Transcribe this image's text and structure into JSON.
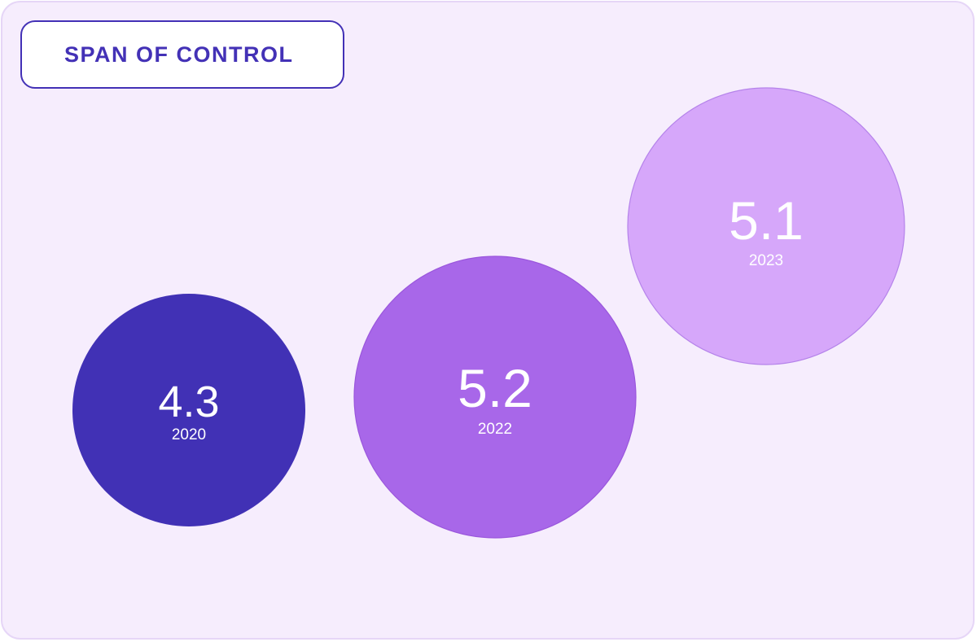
{
  "chart_data": {
    "type": "bubble",
    "title": "SPAN OF CONTROL",
    "points": [
      {
        "year": "2020",
        "value": 4.3,
        "label": "4.3",
        "color": "#4131b5"
      },
      {
        "year": "2022",
        "value": 5.2,
        "label": "5.2",
        "color": "#a867e9"
      },
      {
        "year": "2023",
        "value": 5.1,
        "label": "5.1",
        "color": "#d6a7fa"
      }
    ]
  },
  "colors": {
    "background": "#f6edfd",
    "border": "#e6d6f7",
    "title_border": "#4331b6",
    "title_text": "#4331b6"
  }
}
